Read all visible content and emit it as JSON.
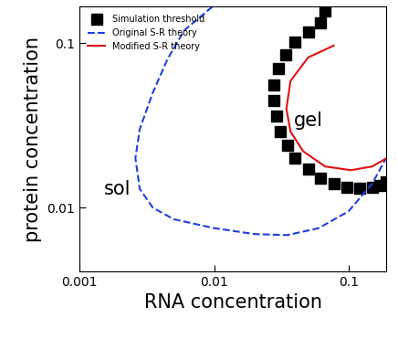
{
  "chart_data": {
    "type": "line",
    "x_label": "RNA concentration",
    "y_label": "protein concentration",
    "log": true,
    "legend": "upper left",
    "xlim": [
      0.001,
      0.19
    ],
    "ylim": [
      0.0041,
      0.167
    ],
    "xticks": [
      0.001,
      0.01,
      0.1
    ],
    "yticks": [
      0.01,
      0.1
    ],
    "annotations": [
      {
        "text": "sol",
        "x": 0.0019,
        "y": 0.0129
      },
      {
        "text": "gel",
        "x": 0.05,
        "y": 0.034
      }
    ],
    "series": [
      {
        "name": "Simulation threshold",
        "color": "#000000",
        "marker": "square",
        "line_style": "none",
        "x": [
          0.067,
          0.062,
          0.05,
          0.04,
          0.034,
          0.03,
          0.028,
          0.028,
          0.029,
          0.031,
          0.035,
          0.04,
          0.05,
          0.062,
          0.078,
          0.097,
          0.12,
          0.15,
          0.17,
          0.19
        ],
        "values": [
          0.158,
          0.134,
          0.118,
          0.102,
          0.085,
          0.07,
          0.056,
          0.045,
          0.036,
          0.029,
          0.024,
          0.02,
          0.0172,
          0.0151,
          0.014,
          0.0133,
          0.0132,
          0.0133,
          0.0137,
          0.0143
        ]
      },
      {
        "name": "Original S-R theory",
        "color": "#1f3fe0",
        "marker": "none",
        "line_style": "dashed",
        "x": [
          0.0097,
          0.006,
          0.0045,
          0.0035,
          0.0028,
          0.0026,
          0.0028,
          0.0035,
          0.005,
          0.01,
          0.02,
          0.035,
          0.06,
          0.1,
          0.15,
          0.19
        ],
        "values": [
          0.167,
          0.12,
          0.08,
          0.05,
          0.03,
          0.02,
          0.013,
          0.01,
          0.0085,
          0.0075,
          0.0069,
          0.0068,
          0.0075,
          0.0095,
          0.014,
          0.02
        ]
      },
      {
        "name": "Modified S-R theory",
        "color": "#e01010",
        "marker": "none",
        "line_style": "solid",
        "x": [
          0.0776,
          0.05,
          0.037,
          0.0345,
          0.037,
          0.046,
          0.067,
          0.104,
          0.15,
          0.19
        ],
        "values": [
          0.097,
          0.082,
          0.059,
          0.04,
          0.029,
          0.022,
          0.0178,
          0.0169,
          0.0178,
          0.0199
        ]
      }
    ]
  }
}
